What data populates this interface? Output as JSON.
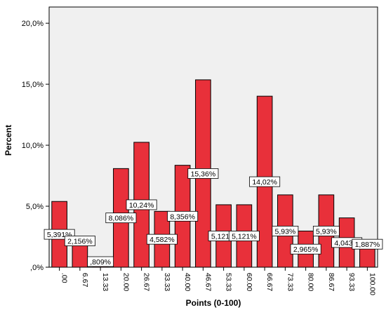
{
  "chart_data": {
    "type": "bar",
    "xlabel": "Points (0-100)",
    "ylabel": "Percent",
    "ylim": [
      0,
      21.33
    ],
    "yticks": [
      0,
      5,
      10,
      15,
      20
    ],
    "ytick_labels": [
      ",0%",
      "5,0%",
      "10,0%",
      "15,0%",
      "20,0%"
    ],
    "categories": [
      ".00",
      "6.67",
      "13.33",
      "20.00",
      "26.67",
      "33.33",
      "40.00",
      "46.67",
      "53.33",
      "60.00",
      "66.67",
      "73.33",
      "80.00",
      "86.67",
      "93.33",
      "100.00"
    ],
    "values": [
      5.391,
      2.156,
      0.809,
      8.086,
      10.24,
      4.582,
      8.356,
      15.36,
      5.121,
      5.121,
      14.02,
      5.93,
      2.965,
      5.93,
      4.043,
      1.887
    ],
    "data_labels": [
      "5,391%",
      "2,156%",
      ",809%",
      "8,086%",
      "10,24%",
      "4,582%",
      "8,356%",
      "15,36%",
      "5,121%",
      "5,121%",
      "14,02%",
      "5,93%",
      "2,965%",
      "5,93%",
      "4,043%",
      "1,887%"
    ],
    "grid": false,
    "colors": {
      "bar_fill": "#e8303a",
      "bar_stroke": "#000000",
      "plot_bg": "#f0f0f0",
      "label_bg": "#ffffff"
    }
  }
}
